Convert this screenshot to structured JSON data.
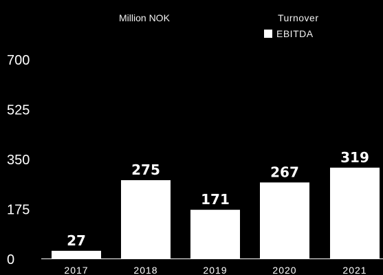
{
  "chart_data": {
    "type": "bar",
    "unit_label": "Million NOK",
    "categories": [
      "2017",
      "2018",
      "2019",
      "2020",
      "2021"
    ],
    "series": [
      {
        "name": "EBITDA",
        "values": [
          27,
          275,
          171,
          267,
          319
        ]
      }
    ],
    "legend": [
      {
        "label": "Turnover",
        "swatch": false
      },
      {
        "label": "EBITDA",
        "swatch": true
      }
    ],
    "legend_position": "top-right",
    "yticks": [
      0,
      175,
      350,
      525,
      700
    ],
    "ylim": [
      0,
      700
    ],
    "grid": false,
    "colors": {
      "background": "#000000",
      "bar": "#ffffff",
      "text": "#ffffff"
    }
  }
}
